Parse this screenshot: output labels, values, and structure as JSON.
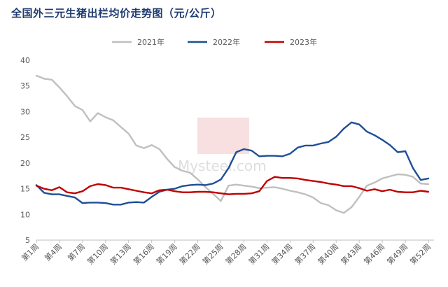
{
  "chart_data": {
    "type": "line",
    "title": "全国外三元生猪出栏均价走势图（元/公斤）",
    "xlabel": "",
    "ylabel": "",
    "ylim": [
      5,
      40
    ],
    "yticks": [
      5,
      10,
      15,
      20,
      25,
      30,
      35,
      40
    ],
    "grid": false,
    "legend_position": "top",
    "watermark_text": "我的钢铁 Mysteel.com",
    "x": [
      1,
      2,
      3,
      4,
      5,
      6,
      7,
      8,
      9,
      10,
      11,
      12,
      13,
      14,
      15,
      16,
      17,
      18,
      19,
      20,
      21,
      22,
      23,
      24,
      25,
      26,
      27,
      28,
      29,
      30,
      31,
      32,
      33,
      34,
      35,
      36,
      37,
      38,
      39,
      40,
      41,
      42,
      43,
      44,
      45,
      46,
      47,
      48,
      49,
      50,
      51,
      52
    ],
    "tick_labels": [
      "第1周",
      "第4周",
      "第7周",
      "第10周",
      "第13周",
      "第16周",
      "第19周",
      "第22周",
      "第25周",
      "第28周",
      "第31周",
      "第34周",
      "第37周",
      "第40周",
      "第43周",
      "第46周",
      "第49周",
      "第52周"
    ],
    "tick_positions": [
      1,
      4,
      7,
      10,
      13,
      16,
      19,
      22,
      25,
      28,
      31,
      34,
      37,
      40,
      43,
      46,
      49,
      52
    ],
    "series": [
      {
        "name": "2021年",
        "color": "#bfbfbf",
        "values": [
          37.0,
          36.4,
          36.2,
          34.7,
          33.0,
          31.1,
          30.3,
          28.1,
          29.7,
          28.9,
          28.3,
          27.0,
          25.7,
          23.4,
          22.9,
          23.5,
          22.7,
          20.8,
          19.2,
          18.5,
          18.1,
          16.8,
          15.3,
          14.0,
          12.6,
          15.6,
          15.8,
          15.6,
          15.4,
          15.1,
          15.2,
          15.3,
          15.0,
          14.6,
          14.3,
          13.9,
          13.3,
          12.2,
          11.8,
          10.8,
          10.3,
          11.4,
          13.4,
          15.6,
          16.2,
          17.0,
          17.4,
          17.8,
          17.7,
          17.3,
          16.0,
          15.9
        ]
      },
      {
        "name": "2022年",
        "color": "#1f4e96",
        "values": [
          15.7,
          14.2,
          13.9,
          13.9,
          13.6,
          13.3,
          12.2,
          12.3,
          12.3,
          12.2,
          11.9,
          11.9,
          12.3,
          12.4,
          12.3,
          13.4,
          14.4,
          14.8,
          15.0,
          15.5,
          15.7,
          15.8,
          15.7,
          16.0,
          16.8,
          19.0,
          22.1,
          22.7,
          22.4,
          21.3,
          21.4,
          21.4,
          21.3,
          21.8,
          23.0,
          23.4,
          23.4,
          23.8,
          24.1,
          25.1,
          26.7,
          27.9,
          27.5,
          26.1,
          25.4,
          24.5,
          23.5,
          22.1,
          22.3,
          19.0,
          16.7,
          17.0
        ]
      },
      {
        "name": "2023年",
        "color": "#c00000",
        "values": [
          15.6,
          15.0,
          14.7,
          15.3,
          14.3,
          14.1,
          14.5,
          15.5,
          15.9,
          15.7,
          15.2,
          15.2,
          14.9,
          14.6,
          14.3,
          14.1,
          14.7,
          14.8,
          14.5,
          14.3,
          14.3,
          14.4,
          14.4,
          14.3,
          14.1,
          13.9,
          14.0,
          14.0,
          14.1,
          14.5,
          16.5,
          17.3,
          17.1,
          17.1,
          17.0,
          16.7,
          16.5,
          16.3,
          16.0,
          15.8,
          15.5,
          15.5,
          15.1,
          14.6,
          14.9,
          14.5,
          14.8,
          14.4,
          14.3,
          14.3,
          14.6,
          14.4
        ]
      }
    ]
  }
}
